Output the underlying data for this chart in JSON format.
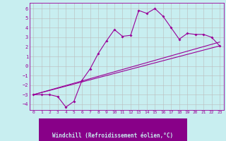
{
  "xlabel": "Windchill (Refroidissement éolien,°C)",
  "background_color": "#c8eef0",
  "xlabel_bg_color": "#880088",
  "xlabel_text_color": "#c8eef0",
  "grid_color": "#bbbbbb",
  "line_color": "#990099",
  "xlim": [
    -0.5,
    23.5
  ],
  "ylim": [
    -4.6,
    6.6
  ],
  "xticks": [
    0,
    1,
    2,
    3,
    4,
    5,
    6,
    7,
    8,
    9,
    10,
    11,
    12,
    13,
    14,
    15,
    16,
    17,
    18,
    19,
    20,
    21,
    22,
    23
  ],
  "yticks": [
    -4,
    -3,
    -2,
    -1,
    0,
    1,
    2,
    3,
    4,
    5,
    6
  ],
  "curve1_x": [
    0,
    1,
    2,
    3,
    4,
    5,
    6,
    7,
    8,
    9,
    10,
    11,
    12,
    13,
    14,
    15,
    16,
    17,
    18,
    19,
    20,
    21,
    22,
    23
  ],
  "curve1_y": [
    -3.0,
    -3.0,
    -3.0,
    -3.2,
    -4.3,
    -3.7,
    -1.5,
    -0.3,
    1.3,
    2.6,
    3.8,
    3.1,
    3.2,
    5.8,
    5.5,
    6.0,
    5.2,
    4.0,
    2.8,
    3.4,
    3.3,
    3.3,
    3.0,
    2.1
  ],
  "line1_x": [
    0,
    23
  ],
  "line1_y": [
    -3.0,
    2.1
  ],
  "line2_x": [
    0,
    23
  ],
  "line2_y": [
    -3.0,
    2.5
  ]
}
